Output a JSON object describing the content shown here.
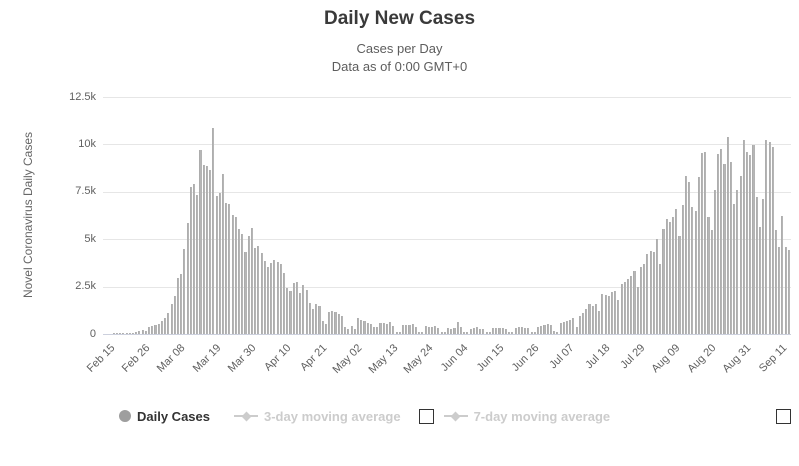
{
  "header": {
    "title": "Daily New Cases",
    "subtitle_line1": "Cases per Day",
    "subtitle_line2": "Data as of 0:00 GMT+0"
  },
  "legend": {
    "items": [
      {
        "label": "Daily Cases",
        "active": true,
        "marker": "circle",
        "checkbox": false
      },
      {
        "label": "3-day moving average",
        "active": false,
        "marker": "line-diamond",
        "checkbox": true,
        "checkbox_checked": false
      },
      {
        "label": "7-day moving average",
        "active": false,
        "marker": "line-diamond",
        "checkbox": true,
        "checkbox_checked": false
      }
    ]
  },
  "colors": {
    "bar": "#a7a7a7",
    "grid_line": "#e6e6e6",
    "axis_line": "#ccd0dd",
    "axis_label": "#606060",
    "title_text": "#3a3a3a",
    "subtitle_text": "#5d5d5d",
    "legend_active_text": "#333333",
    "legend_inactive_text": "#cccccc",
    "legend_marker_active": "#9e9e9e",
    "legend_marker_inactive": "#cccccc",
    "checkbox_border": "#333333"
  },
  "chart_data": {
    "type": "bar",
    "title": "Daily New Cases",
    "subtitle": [
      "Cases per Day",
      "Data as of 0:00 GMT+0"
    ],
    "series_name": "Daily Cases",
    "hidden_series": [
      "3-day moving average",
      "7-day moving average"
    ],
    "xlabel": "",
    "ylabel": "Novel Coronavirus Daily Cases",
    "ylim": [
      0,
      12500
    ],
    "grid": true,
    "legend_position": "bottom",
    "ytick_values": [
      0,
      2500,
      5000,
      7500,
      10000,
      12500
    ],
    "ytick_labels": [
      "0",
      "2.5k",
      "5k",
      "7.5k",
      "10k",
      "12.5k"
    ],
    "xtick_labels": [
      "Feb 15",
      "Feb 26",
      "Mar 08",
      "Mar 19",
      "Mar 30",
      "Apr 10",
      "Apr 21",
      "May 02",
      "May 13",
      "May 24",
      "Jun 04",
      "Jun 15",
      "Jun 26",
      "Jul 07",
      "Jul 18",
      "Jul 29",
      "Aug 09",
      "Aug 20",
      "Aug 31",
      "Sep 11"
    ],
    "xtick_day_indices": [
      0,
      11,
      22,
      33,
      44,
      55,
      66,
      77,
      88,
      99,
      110,
      121,
      132,
      143,
      154,
      165,
      176,
      187,
      198,
      209
    ],
    "dates": [
      "Feb 15",
      "Feb 16",
      "Feb 17",
      "Feb 18",
      "Feb 19",
      "Feb 20",
      "Feb 21",
      "Feb 22",
      "Feb 23",
      "Feb 24",
      "Feb 25",
      "Feb 26",
      "Feb 27",
      "Feb 28",
      "Feb 29",
      "Mar 01",
      "Mar 02",
      "Mar 03",
      "Mar 04",
      "Mar 05",
      "Mar 06",
      "Mar 07",
      "Mar 08",
      "Mar 09",
      "Mar 10",
      "Mar 11",
      "Mar 12",
      "Mar 13",
      "Mar 14",
      "Mar 15",
      "Mar 16",
      "Mar 17",
      "Mar 18",
      "Mar 19",
      "Mar 20",
      "Mar 21",
      "Mar 22",
      "Mar 23",
      "Mar 24",
      "Mar 25",
      "Mar 26",
      "Mar 27",
      "Mar 28",
      "Mar 29",
      "Mar 30",
      "Mar 31",
      "Apr 01",
      "Apr 02",
      "Apr 03",
      "Apr 04",
      "Apr 05",
      "Apr 06",
      "Apr 07",
      "Apr 08",
      "Apr 09",
      "Apr 10",
      "Apr 11",
      "Apr 12",
      "Apr 13",
      "Apr 14",
      "Apr 15",
      "Apr 16",
      "Apr 17",
      "Apr 18",
      "Apr 19",
      "Apr 20",
      "Apr 21",
      "Apr 22",
      "Apr 23",
      "Apr 24",
      "Apr 25",
      "Apr 26",
      "Apr 27",
      "Apr 28",
      "Apr 29",
      "Apr 30",
      "May 01",
      "May 02",
      "May 03",
      "May 04",
      "May 05",
      "May 06",
      "May 07",
      "May 08",
      "May 09",
      "May 10",
      "May 11",
      "May 12",
      "May 13",
      "May 14",
      "May 15",
      "May 16",
      "May 17",
      "May 18",
      "May 19",
      "May 20",
      "May 21",
      "May 22",
      "May 23",
      "May 24",
      "May 25",
      "May 26",
      "May 27",
      "May 28",
      "May 29",
      "May 30",
      "May 31",
      "Jun 01",
      "Jun 02",
      "Jun 03",
      "Jun 04",
      "Jun 05",
      "Jun 06",
      "Jun 07",
      "Jun 08",
      "Jun 09",
      "Jun 10",
      "Jun 11",
      "Jun 12",
      "Jun 13",
      "Jun 14",
      "Jun 15",
      "Jun 16",
      "Jun 17",
      "Jun 18",
      "Jun 19",
      "Jun 20",
      "Jun 21",
      "Jun 22",
      "Jun 23",
      "Jun 24",
      "Jun 25",
      "Jun 26",
      "Jun 27",
      "Jun 28",
      "Jun 29",
      "Jun 30",
      "Jul 01",
      "Jul 02",
      "Jul 03",
      "Jul 04",
      "Jul 05",
      "Jul 06",
      "Jul 07",
      "Jul 08",
      "Jul 09",
      "Jul 10",
      "Jul 11",
      "Jul 12",
      "Jul 13",
      "Jul 14",
      "Jul 15",
      "Jul 16",
      "Jul 17",
      "Jul 18",
      "Jul 19",
      "Jul 20",
      "Jul 21",
      "Jul 22",
      "Jul 23",
      "Jul 24",
      "Jul 25",
      "Jul 26",
      "Jul 27",
      "Jul 28",
      "Jul 29",
      "Jul 30",
      "Jul 31",
      "Aug 01",
      "Aug 02",
      "Aug 03",
      "Aug 04",
      "Aug 05",
      "Aug 06",
      "Aug 07",
      "Aug 08",
      "Aug 09",
      "Aug 10",
      "Aug 11",
      "Aug 12",
      "Aug 13",
      "Aug 14",
      "Aug 15",
      "Aug 16",
      "Aug 17",
      "Aug 18",
      "Aug 19",
      "Aug 20",
      "Aug 21",
      "Aug 22",
      "Aug 23",
      "Aug 24",
      "Aug 25",
      "Aug 26",
      "Aug 27",
      "Aug 28",
      "Aug 29",
      "Aug 30",
      "Aug 31",
      "Sep 01",
      "Sep 02",
      "Sep 03",
      "Sep 04",
      "Sep 05",
      "Sep 06",
      "Sep 07",
      "Sep 08",
      "Sep 09",
      "Sep 10",
      "Sep 11",
      "Sep 12",
      "Sep 13",
      "Sep 14",
      "Sep 15"
    ],
    "values": [
      0,
      0,
      0,
      2,
      3,
      5,
      20,
      35,
      55,
      75,
      110,
      150,
      215,
      165,
      380,
      420,
      450,
      540,
      690,
      870,
      1090,
      1570,
      2010,
      2970,
      3150,
      4460,
      5860,
      7780,
      7900,
      7350,
      9725,
      8930,
      8840,
      8670,
      10870,
      7260,
      7430,
      8450,
      6900,
      6870,
      6280,
      6180,
      5520,
      5300,
      4300,
      5180,
      5590,
      4530,
      4620,
      4250,
      3830,
      3560,
      3770,
      3900,
      3790,
      3700,
      3230,
      2420,
      2250,
      2700,
      2760,
      2150,
      2600,
      2300,
      1660,
      1310,
      1570,
      1480,
      700,
      520,
      1135,
      1220,
      1135,
      1050,
      960,
      350,
      260,
      435,
      260,
      820,
      760,
      680,
      590,
      550,
      390,
      350,
      600,
      560,
      520,
      610,
      440,
      95,
      130,
      500,
      480,
      450,
      520,
      390,
      110,
      90,
      420,
      380,
      360,
      410,
      330,
      100,
      85,
      300,
      280,
      340,
      610,
      390,
      120,
      95,
      280,
      320,
      350,
      290,
      260,
      105,
      90,
      310,
      340,
      300,
      330,
      280,
      95,
      80,
      320,
      360,
      390,
      340,
      300,
      110,
      95,
      380,
      420,
      480,
      520,
      450,
      140,
      120,
      560,
      620,
      700,
      750,
      820,
      390,
      960,
      1090,
      1320,
      1580,
      1495,
      1600,
      1230,
      2110,
      2075,
      2025,
      2200,
      2290,
      1800,
      2640,
      2730,
      2900,
      3080,
      3340,
      2460,
      3520,
      3700,
      4225,
      4400,
      4315,
      5015,
      3700,
      5545,
      6070,
      5895,
      6160,
      6600,
      5190,
      6780,
      8310,
      8010,
      6690,
      6510,
      8280,
      9540,
      9600,
      6160,
      5460,
      7610,
      9510,
      9780,
      8980,
      10390,
      9070,
      6870,
      7570,
      8320,
      10220,
      9600,
      9420,
      9950,
      7220,
      5630,
      7130,
      10220,
      10130,
      9870,
      5460,
      4580,
      6250,
      4580,
      4440
    ]
  }
}
